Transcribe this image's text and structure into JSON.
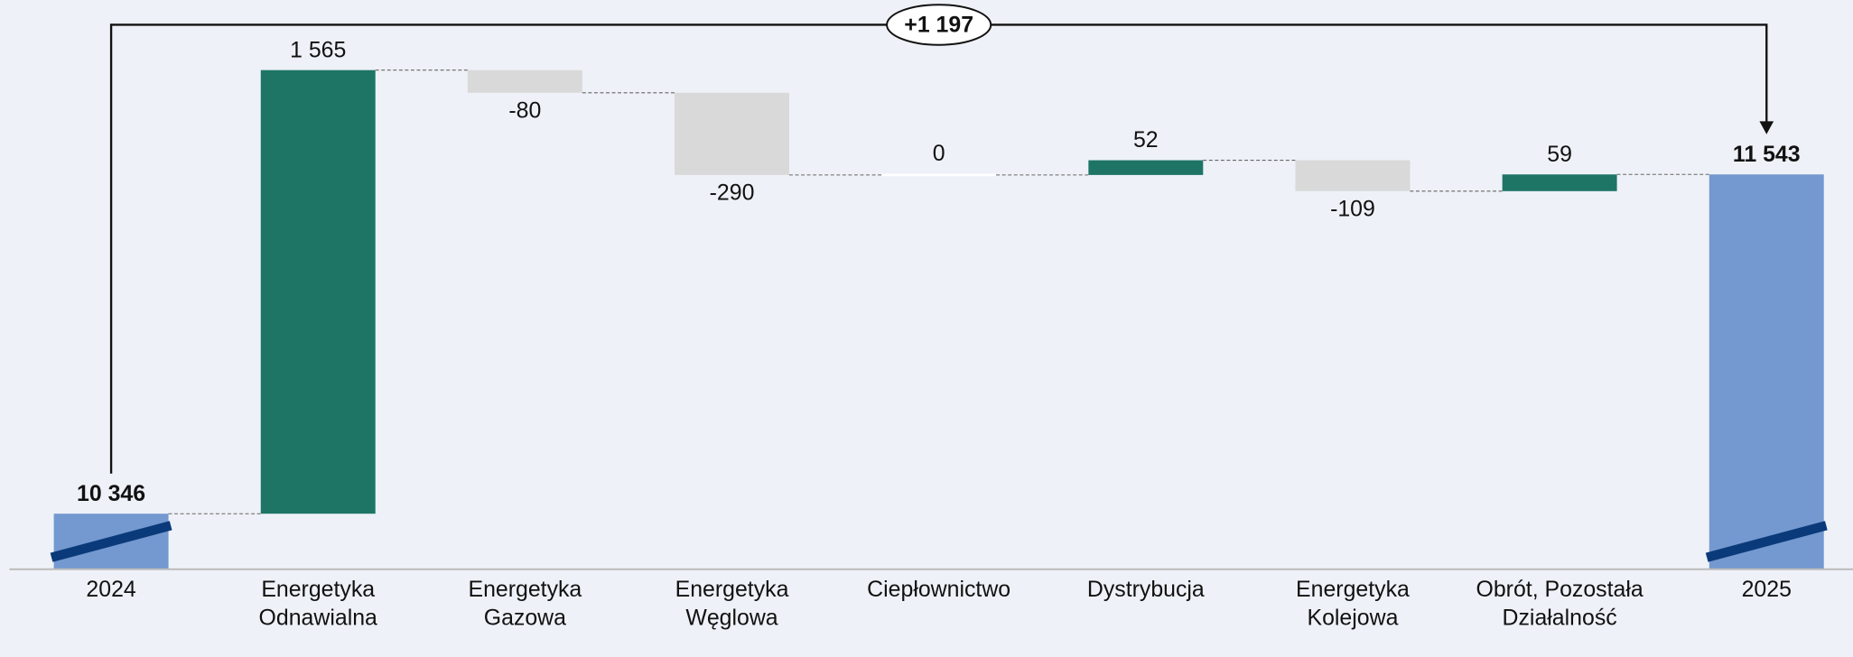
{
  "chart_data": {
    "type": "waterfall",
    "categories": [
      "2024",
      "Energetyka Odnawialna",
      "Energetyka Gazowa",
      "Energetyka Węglowa",
      "Ciepłownictwo",
      "Dystrybucja",
      "Energetyka Kolejowa",
      "Obrót, Pozostała Działalność",
      "2025"
    ],
    "values": [
      10346,
      1565,
      -80,
      -290,
      0,
      52,
      -109,
      59,
      11543
    ],
    "value_labels": [
      "10 346",
      "1 565",
      "-80",
      "-290",
      "0",
      "52",
      "-109",
      "59",
      "11 543"
    ],
    "colors": {
      "total": "#7399d0",
      "increase": "#1e7566",
      "decrease": "#d9d9d9",
      "zero": "#ffffff"
    },
    "ylim": [
      10150,
      12000
    ],
    "annotation": {
      "value": 1197,
      "label": "+1 197"
    }
  }
}
